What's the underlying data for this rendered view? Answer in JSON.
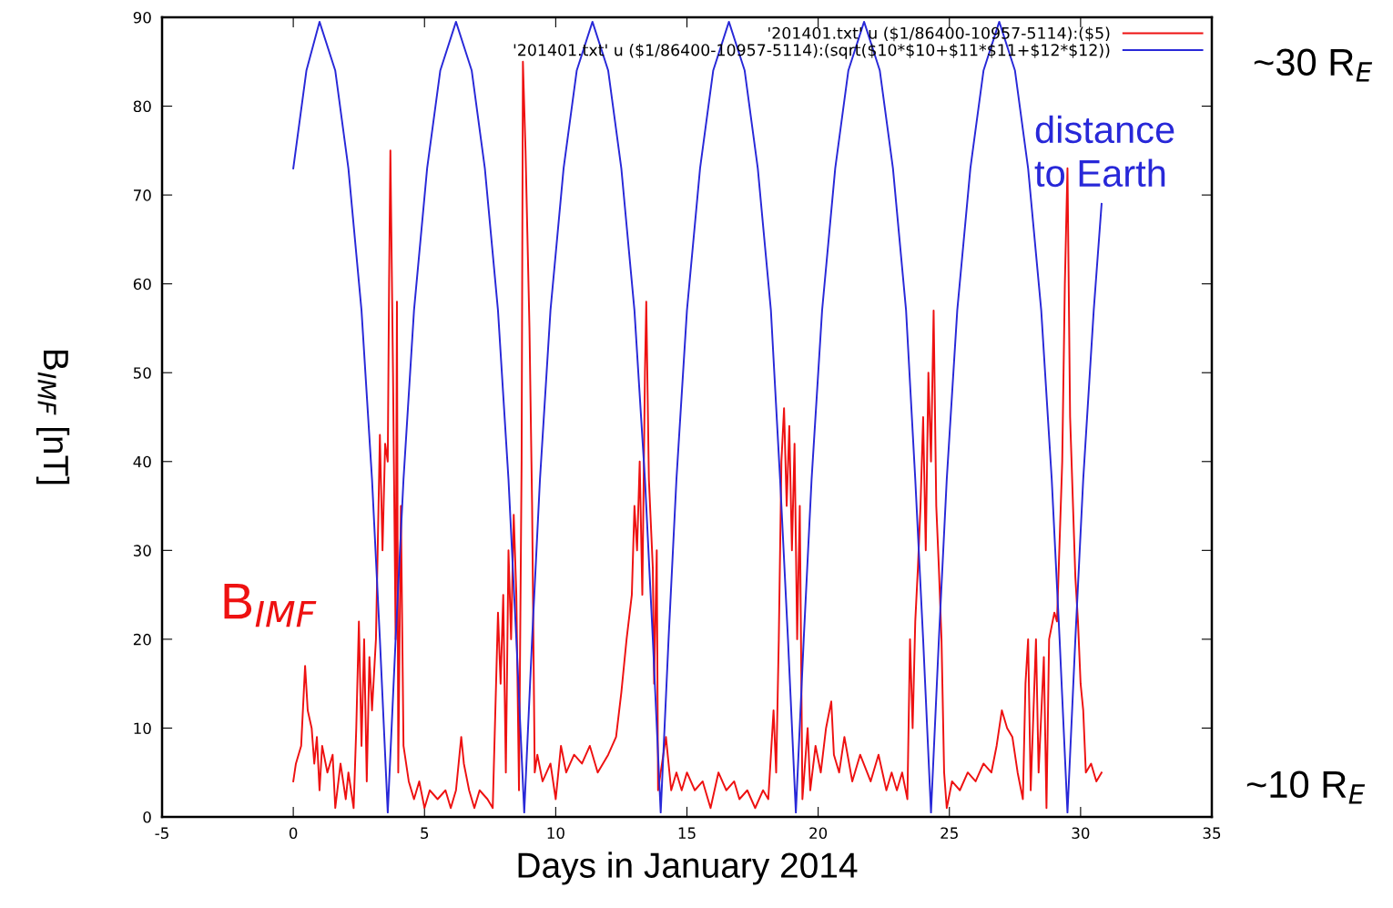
{
  "chart_data": {
    "type": "line",
    "xlabel": "Days in January 2014",
    "ylabel": "B$_{IMF}$ [nT]",
    "xlim": [
      -5,
      35
    ],
    "xticks": [
      -5,
      0,
      5,
      10,
      15,
      20,
      25,
      30,
      35
    ],
    "ylim": [
      0,
      90
    ],
    "yticks": [
      0,
      10,
      20,
      30,
      40,
      50,
      60,
      70,
      80,
      90
    ],
    "grid": false,
    "legend": "top right",
    "line_style": "solid",
    "marker": "none",
    "annotations": [
      "B$_{IMF}$",
      "distance\nto Earth",
      "~30 R$_{E}$",
      "~10 R$_{E}$"
    ],
    "series": [
      {
        "name": "'201401.txt' u ($1/86400-10957-5114):($5)",
        "color": "#ee1111",
        "x": [
          0,
          0.1,
          0.3,
          0.4,
          0.45,
          0.55,
          0.7,
          0.8,
          0.9,
          1.0,
          1.1,
          1.3,
          1.5,
          1.6,
          1.8,
          2.0,
          2.1,
          2.3,
          2.4,
          2.5,
          2.6,
          2.7,
          2.8,
          2.9,
          3.0,
          3.15,
          3.3,
          3.4,
          3.5,
          3.6,
          3.65,
          3.7,
          3.8,
          3.9,
          3.95,
          4.0,
          4.1,
          4.2,
          4.4,
          4.6,
          4.8,
          5.0,
          5.2,
          5.5,
          5.8,
          6.0,
          6.2,
          6.4,
          6.5,
          6.7,
          6.9,
          7.1,
          7.4,
          7.6,
          7.8,
          7.9,
          8.0,
          8.1,
          8.2,
          8.3,
          8.4,
          8.5,
          8.6,
          8.7,
          8.75,
          8.85,
          9.0,
          9.1,
          9.2,
          9.3,
          9.5,
          9.8,
          10.0,
          10.2,
          10.4,
          10.7,
          11.0,
          11.3,
          11.6,
          12.0,
          12.3,
          12.5,
          12.7,
          12.9,
          13.0,
          13.1,
          13.2,
          13.3,
          13.4,
          13.45,
          13.55,
          13.7,
          13.75,
          13.85,
          13.9,
          14.0,
          14.2,
          14.4,
          14.6,
          14.8,
          15.0,
          15.3,
          15.6,
          15.9,
          16.2,
          16.5,
          16.8,
          17.0,
          17.3,
          17.6,
          17.9,
          18.1,
          18.3,
          18.4,
          18.5,
          18.6,
          18.7,
          18.8,
          18.9,
          19.0,
          19.1,
          19.2,
          19.3,
          19.4,
          19.6,
          19.7,
          19.9,
          20.1,
          20.3,
          20.5,
          20.6,
          20.8,
          21.0,
          21.3,
          21.6,
          22.0,
          22.3,
          22.6,
          22.8,
          23.0,
          23.2,
          23.4,
          23.5,
          23.6,
          23.7,
          23.8,
          23.9,
          24.0,
          24.1,
          24.2,
          24.3,
          24.4,
          24.5,
          24.6,
          24.7,
          24.8,
          24.9,
          25.1,
          25.4,
          25.7,
          26.0,
          26.3,
          26.6,
          26.8,
          27.0,
          27.2,
          27.4,
          27.6,
          27.8,
          27.9,
          28.0,
          28.1,
          28.3,
          28.4,
          28.6,
          28.7,
          28.8,
          29.0,
          29.1,
          29.3,
          29.4,
          29.5,
          29.6,
          29.8,
          29.9,
          30.0,
          30.1,
          30.2,
          30.4,
          30.6,
          30.8
        ],
        "values": [
          4,
          6,
          8,
          14,
          17,
          12,
          10,
          6,
          9,
          3,
          8,
          5,
          7,
          1,
          6,
          2,
          5,
          1,
          10,
          22,
          8,
          20,
          4,
          18,
          12,
          20,
          43,
          30,
          42,
          40,
          60,
          75,
          50,
          20,
          58,
          5,
          35,
          8,
          4,
          2,
          4,
          1,
          3,
          2,
          3,
          1,
          3,
          9,
          6,
          3,
          1,
          3,
          2,
          1,
          23,
          15,
          25,
          5,
          30,
          20,
          34,
          25,
          3,
          40,
          85,
          75,
          55,
          35,
          5,
          7,
          4,
          6,
          2,
          8,
          5,
          7,
          6,
          8,
          5,
          7,
          9,
          14,
          20,
          25,
          35,
          30,
          40,
          25,
          50,
          58,
          38,
          28,
          15,
          30,
          3,
          5,
          9,
          3,
          5,
          3,
          5,
          3,
          4,
          1,
          5,
          3,
          4,
          2,
          3,
          1,
          3,
          2,
          12,
          5,
          20,
          40,
          46,
          35,
          44,
          30,
          42,
          20,
          35,
          2,
          10,
          3,
          8,
          5,
          10,
          13,
          7,
          5,
          9,
          4,
          7,
          4,
          7,
          3,
          5,
          3,
          5,
          2,
          20,
          10,
          22,
          28,
          35,
          45,
          30,
          50,
          40,
          57,
          35,
          28,
          20,
          5,
          1,
          4,
          3,
          5,
          4,
          6,
          5,
          8,
          12,
          10,
          9,
          5,
          2,
          15,
          20,
          3,
          20,
          5,
          18,
          1,
          20,
          23,
          22,
          40,
          60,
          73,
          45,
          27,
          22,
          15,
          12,
          5,
          6,
          4,
          5
        ]
      },
      {
        "name": "'201401.txt' u ($1/86400-10957-5114):(sqrt($10*$10+$11*$11+$12*$12))",
        "color": "#2828d8",
        "x": [
          0,
          0.5,
          1.0,
          1.6,
          2.1,
          2.6,
          3.0,
          3.3,
          3.6,
          3.9,
          4.2,
          4.6,
          5.1,
          5.6,
          6.2,
          6.8,
          7.3,
          7.8,
          8.2,
          8.5,
          8.8,
          9.1,
          9.4,
          9.8,
          10.3,
          10.8,
          11.4,
          12.0,
          12.5,
          13.0,
          13.4,
          13.7,
          14.0,
          14.3,
          14.6,
          15.0,
          15.5,
          16.0,
          16.6,
          17.2,
          17.7,
          18.2,
          18.55,
          18.85,
          19.15,
          19.45,
          19.75,
          20.15,
          20.65,
          21.15,
          21.75,
          22.35,
          22.85,
          23.35,
          23.7,
          24.0,
          24.3,
          24.6,
          24.9,
          25.3,
          25.8,
          26.3,
          26.9,
          27.5,
          28.0,
          28.5,
          28.9,
          29.2,
          29.5,
          29.8,
          30.1,
          30.5,
          30.8
        ],
        "values": [
          73,
          84,
          89.5,
          84,
          73,
          57,
          38,
          20,
          0.5,
          20,
          38,
          57,
          73,
          84,
          89.5,
          84,
          73,
          57,
          38,
          20,
          0.5,
          20,
          38,
          57,
          73,
          84,
          89.5,
          84,
          73,
          57,
          38,
          20,
          0.5,
          20,
          38,
          57,
          73,
          84,
          89.5,
          84,
          73,
          57,
          38,
          20,
          0.5,
          20,
          38,
          57,
          73,
          84,
          89.5,
          84,
          73,
          57,
          38,
          20,
          0.5,
          20,
          38,
          57,
          73,
          84,
          89.5,
          84,
          73,
          57,
          38,
          20,
          0.5,
          20,
          38,
          57,
          69
        ]
      }
    ]
  }
}
